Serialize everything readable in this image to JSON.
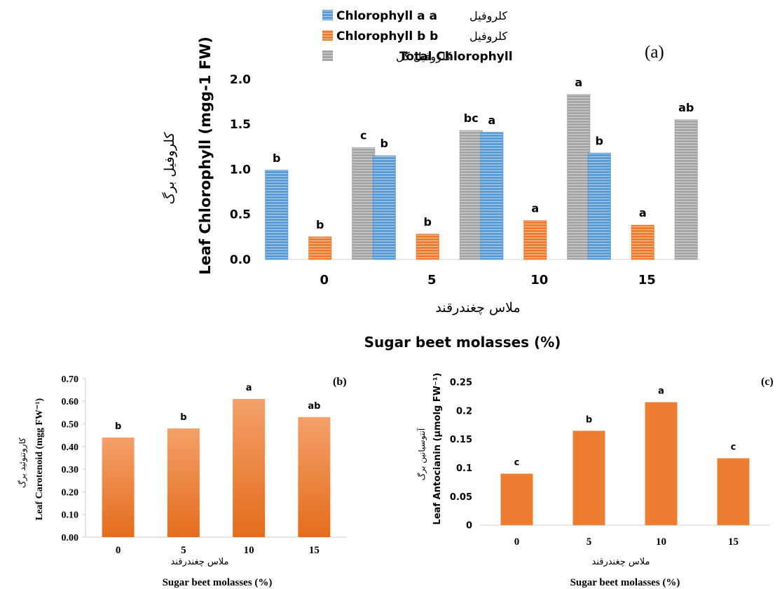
{
  "legend": [
    {
      "name": "Chlorophyll  a a",
      "fa": "کلروفیل",
      "color": "#5b9bd5"
    },
    {
      "name": "Chlorophyll  b b",
      "fa": "کلروفیل",
      "color": "#ed7d31"
    },
    {
      "name": "Total Chlorophyll",
      "fa": "کلروفیل کل",
      "color": "#a5a5a5"
    }
  ],
  "chart_data": [
    {
      "panel": "(a)",
      "type": "bar",
      "categories": [
        "0",
        "5",
        "10",
        "15"
      ],
      "series": [
        {
          "name": "Chlorophyll  a a",
          "values": [
            0.99,
            1.15,
            1.41,
            1.18
          ],
          "letters": [
            "b",
            "b",
            "a",
            "b"
          ],
          "color": "#5b9bd5"
        },
        {
          "name": "Chlorophyll  b b",
          "values": [
            0.25,
            0.28,
            0.43,
            0.38
          ],
          "letters": [
            "b",
            "b",
            "a",
            "a"
          ],
          "color": "#ed7d31"
        },
        {
          "name": "Total Chlorophyll",
          "values": [
            1.24,
            1.43,
            1.83,
            1.55
          ],
          "letters": [
            "c",
            "bc",
            "a",
            "ab"
          ],
          "color": "#a5a5a5"
        }
      ],
      "ylim": [
        0,
        2.0
      ],
      "yticks": [
        "0.0",
        "0.5",
        "1.0",
        "1.5",
        "2.0"
      ],
      "ylabel": "Leaf Chlorophyll (mgg-1 FW)",
      "ylabel_fa": "کلروفیل برگ",
      "xlabel_fa": "ملاس چغندرقند",
      "xlabel": "Sugar beet molasses (%)"
    },
    {
      "panel": "(b)",
      "type": "bar",
      "categories": [
        "0",
        "5",
        "10",
        "15"
      ],
      "series": [
        {
          "values": [
            0.44,
            0.48,
            0.61,
            0.53
          ],
          "letters": [
            "b",
            "b",
            "a",
            "ab"
          ]
        }
      ],
      "ylim": [
        0,
        0.7
      ],
      "yticks": [
        "0.00",
        "0.10",
        "0.20",
        "0.30",
        "0.40",
        "0.50",
        "0.60",
        "0.70"
      ],
      "ylabel": "Leaf Carotenoid (mgg FW⁻¹)",
      "ylabel_fa": "کاروتنوئید برگ",
      "xlabel_fa": "ملاس چغندرقند",
      "xlabel": "Sugar beet molasses (%)"
    },
    {
      "panel": "(c)",
      "type": "bar",
      "categories": [
        "0",
        "5",
        "10",
        "15"
      ],
      "series": [
        {
          "values": [
            0.09,
            0.165,
            0.215,
            0.117
          ],
          "letters": [
            "c",
            "b",
            "a",
            "c"
          ],
          "color": "#ed7d31"
        }
      ],
      "ylim": [
        0,
        0.25
      ],
      "yticks": [
        "0",
        "0.05",
        "0.1",
        "0.15",
        "0.2",
        "0.25"
      ],
      "ylabel": "Leaf Antocianin (µmolg FW⁻¹)",
      "ylabel_fa": "آنتوسیانین برگ",
      "xlabel_fa": "ملاس چغندرقند",
      "xlabel": "Sugar beet molasses (%)"
    }
  ]
}
